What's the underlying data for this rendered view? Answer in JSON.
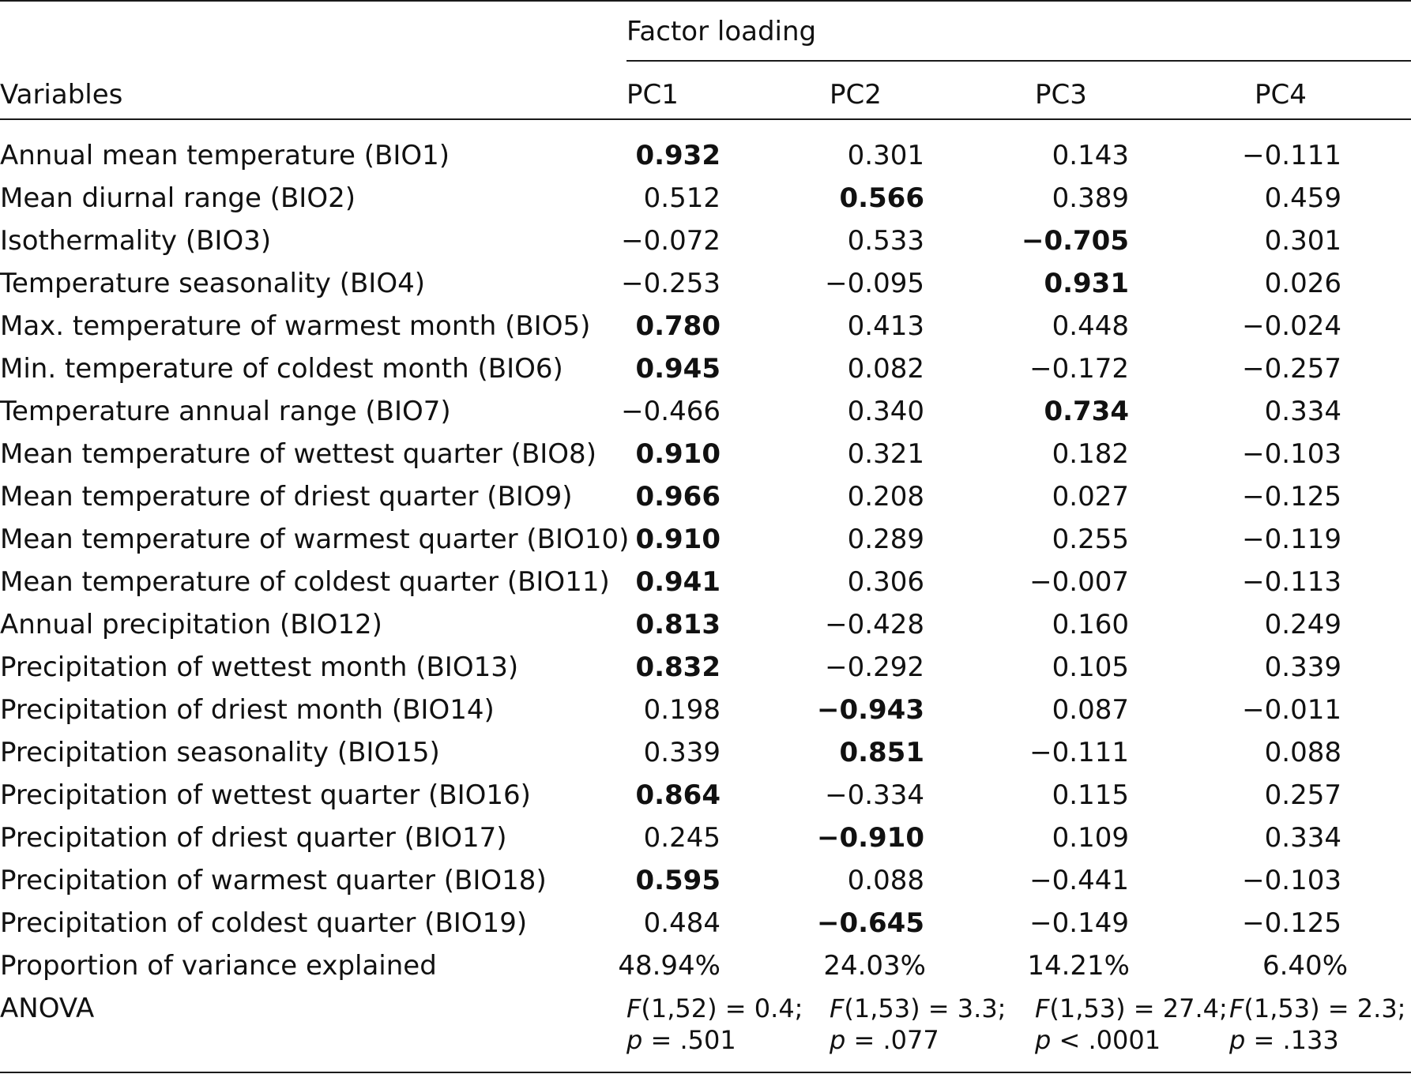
{
  "table": {
    "group_header": "Factor loading",
    "variables_header": "Variables",
    "columns": [
      "PC1",
      "PC2",
      "PC3",
      "PC4"
    ],
    "rows": [
      {
        "label": "Annual mean temperature (BIO1)",
        "values": [
          "0.932",
          "0.301",
          "0.143",
          "−0.111"
        ],
        "bold": [
          true,
          false,
          false,
          false
        ]
      },
      {
        "label": "Mean diurnal range (BIO2)",
        "values": [
          "0.512",
          "0.566",
          "0.389",
          "0.459"
        ],
        "bold": [
          false,
          true,
          false,
          false
        ]
      },
      {
        "label": "Isothermality (BIO3)",
        "values": [
          "−0.072",
          "0.533",
          "−0.705",
          "0.301"
        ],
        "bold": [
          false,
          false,
          true,
          false
        ]
      },
      {
        "label": "Temperature seasonality (BIO4)",
        "values": [
          "−0.253",
          "−0.095",
          "0.931",
          "0.026"
        ],
        "bold": [
          false,
          false,
          true,
          false
        ]
      },
      {
        "label": "Max. temperature of warmest month (BIO5)",
        "values": [
          "0.780",
          "0.413",
          "0.448",
          "−0.024"
        ],
        "bold": [
          true,
          false,
          false,
          false
        ]
      },
      {
        "label": "Min. temperature of coldest month (BIO6)",
        "values": [
          "0.945",
          "0.082",
          "−0.172",
          "−0.257"
        ],
        "bold": [
          true,
          false,
          false,
          false
        ]
      },
      {
        "label": "Temperature annual range (BIO7)",
        "values": [
          "−0.466",
          "0.340",
          "0.734",
          "0.334"
        ],
        "bold": [
          false,
          false,
          true,
          false
        ]
      },
      {
        "label": "Mean temperature of wettest quarter (BIO8)",
        "values": [
          "0.910",
          "0.321",
          "0.182",
          "−0.103"
        ],
        "bold": [
          true,
          false,
          false,
          false
        ]
      },
      {
        "label": "Mean temperature of driest quarter (BIO9)",
        "values": [
          "0.966",
          "0.208",
          "0.027",
          "−0.125"
        ],
        "bold": [
          true,
          false,
          false,
          false
        ]
      },
      {
        "label": "Mean temperature of warmest quarter (BIO10)",
        "values": [
          "0.910",
          "0.289",
          "0.255",
          "−0.119"
        ],
        "bold": [
          true,
          false,
          false,
          false
        ]
      },
      {
        "label": "Mean temperature of coldest quarter (BIO11)",
        "values": [
          "0.941",
          "0.306",
          "−0.007",
          "−0.113"
        ],
        "bold": [
          true,
          false,
          false,
          false
        ]
      },
      {
        "label": "Annual precipitation (BIO12)",
        "values": [
          "0.813",
          "−0.428",
          "0.160",
          "0.249"
        ],
        "bold": [
          true,
          false,
          false,
          false
        ]
      },
      {
        "label": "Precipitation of wettest month (BIO13)",
        "values": [
          "0.832",
          "−0.292",
          "0.105",
          "0.339"
        ],
        "bold": [
          true,
          false,
          false,
          false
        ]
      },
      {
        "label": "Precipitation of driest month (BIO14)",
        "values": [
          "0.198",
          "−0.943",
          "0.087",
          "−0.011"
        ],
        "bold": [
          false,
          true,
          false,
          false
        ]
      },
      {
        "label": "Precipitation seasonality (BIO15)",
        "values": [
          "0.339",
          "0.851",
          "−0.111",
          "0.088"
        ],
        "bold": [
          false,
          true,
          false,
          false
        ]
      },
      {
        "label": "Precipitation of wettest quarter (BIO16)",
        "values": [
          "0.864",
          "−0.334",
          "0.115",
          "0.257"
        ],
        "bold": [
          true,
          false,
          false,
          false
        ]
      },
      {
        "label": "Precipitation of driest quarter (BIO17)",
        "values": [
          "0.245",
          "−0.910",
          "0.109",
          "0.334"
        ],
        "bold": [
          false,
          true,
          false,
          false
        ]
      },
      {
        "label": "Precipitation of warmest quarter (BIO18)",
        "values": [
          "0.595",
          "0.088",
          "−0.441",
          "−0.103"
        ],
        "bold": [
          true,
          false,
          false,
          false
        ]
      },
      {
        "label": "Precipitation of coldest quarter (BIO19)",
        "values": [
          "0.484",
          "−0.645",
          "−0.149",
          "−0.125"
        ],
        "bold": [
          false,
          true,
          false,
          false
        ]
      }
    ],
    "variance_row": {
      "label": "Proportion of variance explained",
      "values": [
        "48.94%",
        "24.03%",
        "14.21%",
        "6.40%"
      ]
    },
    "anova_row": {
      "label": "ANOVA",
      "cells": [
        {
          "f": "F",
          "stat": "(1,52) = 0.4;",
          "p": "p",
          "pval": " = .501"
        },
        {
          "f": "F",
          "stat": "(1,53) = 3.3;",
          "p": "p",
          "pval": " = .077"
        },
        {
          "f": "F",
          "stat": "(1,53) = 27.4;",
          "p": "p",
          "pval": " < .0001"
        },
        {
          "f": "F",
          "stat": "(1,53) = 2.3;",
          "p": "p",
          "pval": " = .133"
        }
      ]
    }
  }
}
